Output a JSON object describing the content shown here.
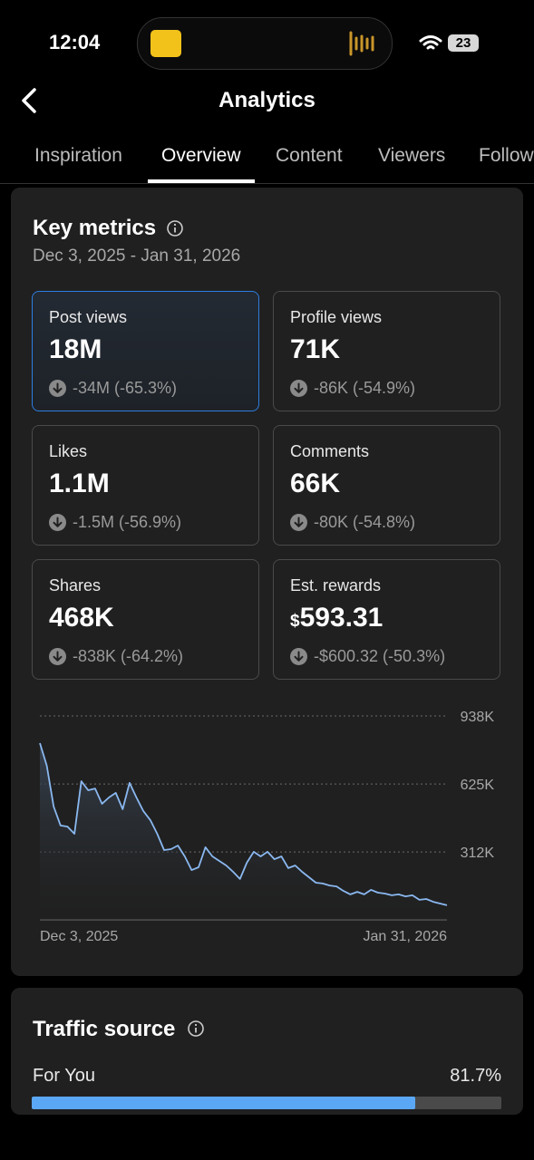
{
  "status_bar": {
    "time": "12:04",
    "battery": "23"
  },
  "header": {
    "title": "Analytics"
  },
  "tabs": {
    "items": [
      "Inspiration",
      "Overview",
      "Content",
      "Viewers",
      "Followers"
    ],
    "active": 1
  },
  "key_metrics": {
    "title": "Key metrics",
    "date_range": "Dec 3, 2025 - Jan 31, 2026",
    "metrics": [
      {
        "label": "Post views",
        "value": "18M",
        "change": "-34M (-65.3%)"
      },
      {
        "label": "Profile views",
        "value": "71K",
        "change": "-86K (-54.9%)"
      },
      {
        "label": "Likes",
        "value": "1.1M",
        "change": "-1.5M (-56.9%)"
      },
      {
        "label": "Comments",
        "value": "66K",
        "change": "-80K (-54.8%)"
      },
      {
        "label": "Shares",
        "value": "468K",
        "change": "-838K (-64.2%)"
      },
      {
        "label": "Est. rewards",
        "prefix": "$",
        "value": "593.31",
        "change": "-$600.32 (-50.3%)"
      }
    ]
  },
  "chart_data": {
    "type": "line",
    "categories": [
      "Dec 3, 2025",
      null,
      null,
      null,
      null,
      null,
      null,
      null,
      null,
      null,
      null,
      null,
      null,
      null,
      null,
      null,
      null,
      null,
      null,
      null,
      null,
      null,
      null,
      null,
      null,
      null,
      null,
      null,
      null,
      null,
      null,
      null,
      null,
      null,
      null,
      null,
      null,
      null,
      null,
      null,
      null,
      null,
      null,
      null,
      null,
      null,
      null,
      null,
      null,
      null,
      null,
      null,
      null,
      null,
      null,
      null,
      null,
      null,
      null,
      "Jan 31, 2026"
    ],
    "series": [
      {
        "name": "Post views",
        "color": "#8ab8f0",
        "values": [
          813000,
          709000,
          521000,
          434000,
          429000,
          396000,
          638000,
          596000,
          604000,
          534000,
          563000,
          584000,
          509000,
          630000,
          563000,
          500000,
          459000,
          396000,
          321000,
          325000,
          342000,
          292000,
          229000,
          242000,
          334000,
          292000,
          271000,
          250000,
          221000,
          188000,
          263000,
          313000,
          292000,
          313000,
          279000,
          292000,
          238000,
          250000,
          221000,
          196000,
          171000,
          167000,
          158000,
          154000,
          133000,
          117000,
          129000,
          117000,
          138000,
          125000,
          121000,
          113000,
          117000,
          108000,
          113000,
          92000,
          96000,
          83000,
          75000,
          67000
        ]
      }
    ],
    "ylim": [
      0,
      938000
    ],
    "yticks": [
      {
        "value": 312000,
        "label": "312K"
      },
      {
        "value": 625000,
        "label": "625K"
      },
      {
        "value": 938000,
        "label": "938K"
      }
    ],
    "grid": true
  },
  "traffic_source": {
    "title": "Traffic source",
    "items": [
      {
        "name": "For You",
        "value": 81.7,
        "value_label": "81.7%"
      }
    ]
  }
}
